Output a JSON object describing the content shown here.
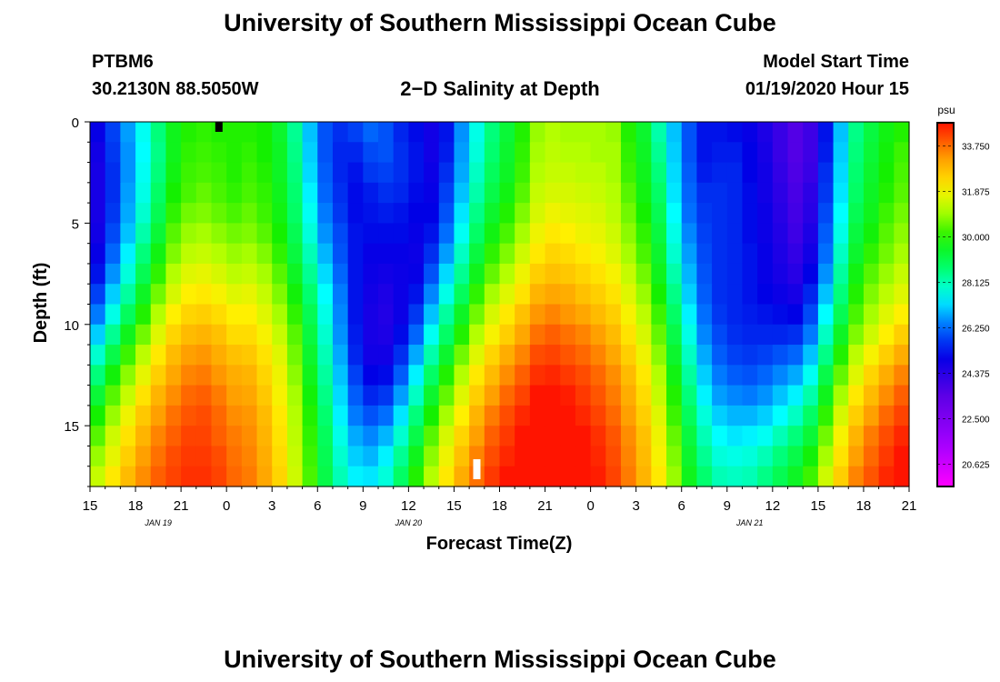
{
  "header": {
    "title": "University of Southern Mississippi Ocean Cube",
    "station": "PTBM6",
    "location": "30.2130N 88.5050W",
    "subtitle": "2−D Salinity at Depth",
    "model_start_label": "Model Start Time",
    "model_start_value": "01/19/2020 Hour 15"
  },
  "footer": {
    "title": "University of Southern Mississippi Ocean Cube"
  },
  "chart_data": {
    "type": "heatmap",
    "title": "2−D Salinity at Depth",
    "xlabel": "Forecast Time(Z)",
    "ylabel": "Depth (ft)",
    "x_hours_range": [
      0,
      54
    ],
    "ylim": [
      0,
      18
    ],
    "y_inverted": true,
    "x_tick_labels": [
      "15",
      "18",
      "21",
      "0",
      "3",
      "6",
      "9",
      "12",
      "15",
      "18",
      "21",
      "0",
      "3",
      "6",
      "9",
      "12",
      "15",
      "18",
      "21"
    ],
    "y_tick_labels": [
      "0",
      "5",
      "10",
      "15"
    ],
    "y_tick_values": [
      0,
      5,
      10,
      15
    ],
    "date_labels": [
      {
        "text": "JAN 19",
        "hour": 4.5
      },
      {
        "text": "JAN 20",
        "hour": 21
      },
      {
        "text": "JAN 21",
        "hour": 43.5
      }
    ],
    "colorbar": {
      "unit": "psu",
      "min": 19.7,
      "max": 34.7,
      "tick_labels": [
        "33.750",
        "31.875",
        "30.000",
        "28.125",
        "26.250",
        "24.375",
        "22.500",
        "20.625"
      ],
      "tick_values": [
        33.75,
        31.875,
        30.0,
        28.125,
        26.25,
        24.375,
        22.5,
        20.625
      ]
    },
    "grid_cols": 54,
    "grid_rows": 18,
    "salinity_rows_psu": [
      [
        25.0,
        25.8,
        26.7,
        27.6,
        28.6,
        29.6,
        30.0,
        30.1,
        30.0,
        30.0,
        30.0,
        29.9,
        29.4,
        28.4,
        27.0,
        26.0,
        25.6,
        25.8,
        26.2,
        26.0,
        25.5,
        25.2,
        24.8,
        25.3,
        26.6,
        27.7,
        28.6,
        29.3,
        30.0,
        30.9,
        31.1,
        31.0,
        31.0,
        31.0,
        30.9,
        30.0,
        29.4,
        28.2,
        27.0,
        26.0,
        25.3,
        25.3,
        25.2,
        25.0,
        24.6,
        24.1,
        23.6,
        24.0,
        25.3,
        27.0,
        28.5,
        29.2,
        29.7,
        30.0
      ],
      [
        24.8,
        25.7,
        26.6,
        27.5,
        28.5,
        29.6,
        30.1,
        30.2,
        30.1,
        30.0,
        30.1,
        29.9,
        29.5,
        28.5,
        27.1,
        26.0,
        25.5,
        25.5,
        25.9,
        26.0,
        25.6,
        25.3,
        24.8,
        25.4,
        26.7,
        27.8,
        28.7,
        29.4,
        30.1,
        31.0,
        31.2,
        31.1,
        31.1,
        31.0,
        31.0,
        30.1,
        29.5,
        28.4,
        27.1,
        26.0,
        25.3,
        25.4,
        25.4,
        25.1,
        24.7,
        24.1,
        23.6,
        24.0,
        25.4,
        27.1,
        28.6,
        29.3,
        29.8,
        30.2
      ],
      [
        24.7,
        25.6,
        26.6,
        27.6,
        28.6,
        29.7,
        30.2,
        30.3,
        30.2,
        30.0,
        30.2,
        30.0,
        29.5,
        28.6,
        27.2,
        26.1,
        25.5,
        25.3,
        25.7,
        25.8,
        25.6,
        25.3,
        24.9,
        25.6,
        26.8,
        28.0,
        28.9,
        29.5,
        30.2,
        31.1,
        31.3,
        31.3,
        31.2,
        31.2,
        31.0,
        30.2,
        29.6,
        28.6,
        27.2,
        26.1,
        25.4,
        25.5,
        25.5,
        25.1,
        24.8,
        24.2,
        23.7,
        24.1,
        25.6,
        27.2,
        28.7,
        29.4,
        29.9,
        30.3
      ],
      [
        24.7,
        25.6,
        26.7,
        27.7,
        28.8,
        29.9,
        30.3,
        30.5,
        30.3,
        30.1,
        30.3,
        30.1,
        29.6,
        28.7,
        27.4,
        26.2,
        25.6,
        25.2,
        25.4,
        25.6,
        25.5,
        25.2,
        25.0,
        25.8,
        27.0,
        28.2,
        29.1,
        29.7,
        30.4,
        31.3,
        31.5,
        31.5,
        31.4,
        31.3,
        31.1,
        30.4,
        29.7,
        28.8,
        27.3,
        26.2,
        25.6,
        25.6,
        25.5,
        25.2,
        24.8,
        24.3,
        23.8,
        24.3,
        25.7,
        27.3,
        28.8,
        29.5,
        30.0,
        30.4
      ],
      [
        24.7,
        25.7,
        26.8,
        27.9,
        29.0,
        30.1,
        30.6,
        30.7,
        30.5,
        30.3,
        30.5,
        30.2,
        29.7,
        28.8,
        27.6,
        26.4,
        25.7,
        25.2,
        25.3,
        25.4,
        25.3,
        25.1,
        25.1,
        26.0,
        27.3,
        28.5,
        29.4,
        30.0,
        30.7,
        31.5,
        31.8,
        31.7,
        31.6,
        31.5,
        31.2,
        30.6,
        29.9,
        29.0,
        27.5,
        26.3,
        25.7,
        25.6,
        25.5,
        25.2,
        24.9,
        24.4,
        23.9,
        24.4,
        25.9,
        27.5,
        29.0,
        29.6,
        30.2,
        30.6
      ],
      [
        24.8,
        25.9,
        27.0,
        28.2,
        29.3,
        30.4,
        30.9,
        31.0,
        30.8,
        30.6,
        30.7,
        30.4,
        29.9,
        29.0,
        27.8,
        26.6,
        25.9,
        25.3,
        25.2,
        25.2,
        25.2,
        25.0,
        25.3,
        26.3,
        27.6,
        28.8,
        29.7,
        30.3,
        31.0,
        31.8,
        32.1,
        32.0,
        31.8,
        31.7,
        31.4,
        30.8,
        30.1,
        29.2,
        27.7,
        26.5,
        25.8,
        25.6,
        25.5,
        25.2,
        24.9,
        24.5,
        24.0,
        24.6,
        26.1,
        27.7,
        29.2,
        29.8,
        30.4,
        30.8
      ],
      [
        25.0,
        26.2,
        27.4,
        28.6,
        29.7,
        30.7,
        31.2,
        31.3,
        31.1,
        30.9,
        31.0,
        30.7,
        30.1,
        29.2,
        28.1,
        26.9,
        26.0,
        25.3,
        25.0,
        25.0,
        25.0,
        24.9,
        25.6,
        26.7,
        28.0,
        29.2,
        30.1,
        30.7,
        31.4,
        32.1,
        32.4,
        32.3,
        32.1,
        31.9,
        31.6,
        31.0,
        30.3,
        29.4,
        27.9,
        26.7,
        25.9,
        25.6,
        25.5,
        25.3,
        25.0,
        24.6,
        24.2,
        24.8,
        26.3,
        28.0,
        29.4,
        30.1,
        30.6,
        31.0
      ],
      [
        25.3,
        26.6,
        27.8,
        29.0,
        30.1,
        31.1,
        31.6,
        31.7,
        31.5,
        31.2,
        31.3,
        31.0,
        30.4,
        29.5,
        28.4,
        27.2,
        26.2,
        25.3,
        24.9,
        24.8,
        24.9,
        25.0,
        26.0,
        27.2,
        28.4,
        29.6,
        30.5,
        31.1,
        31.8,
        32.5,
        32.7,
        32.6,
        32.4,
        32.2,
        31.9,
        31.3,
        30.6,
        29.6,
        28.2,
        26.9,
        26.0,
        25.6,
        25.5,
        25.3,
        25.0,
        24.7,
        24.4,
        25.1,
        26.6,
        28.3,
        29.7,
        30.4,
        30.9,
        31.3
      ],
      [
        25.8,
        27.1,
        28.3,
        29.5,
        30.6,
        31.5,
        32.0,
        32.1,
        31.9,
        31.6,
        31.7,
        31.3,
        30.7,
        29.8,
        28.7,
        27.5,
        26.4,
        25.3,
        24.8,
        24.6,
        24.9,
        25.3,
        26.5,
        27.7,
        28.9,
        30.1,
        31.0,
        31.6,
        32.2,
        32.9,
        33.1,
        33.0,
        32.7,
        32.5,
        32.2,
        31.6,
        30.9,
        29.9,
        28.5,
        27.1,
        26.1,
        25.6,
        25.5,
        25.3,
        25.1,
        24.9,
        24.7,
        25.5,
        27.0,
        28.6,
        30.0,
        30.7,
        31.2,
        31.6
      ],
      [
        26.4,
        27.7,
        28.9,
        30.0,
        31.1,
        32.0,
        32.4,
        32.5,
        32.3,
        32.0,
        32.0,
        31.6,
        31.0,
        30.1,
        29.0,
        27.7,
        26.5,
        25.3,
        24.7,
        24.5,
        24.9,
        25.7,
        27.0,
        28.3,
        29.5,
        30.6,
        31.5,
        32.1,
        32.7,
        33.3,
        33.5,
        33.3,
        33.1,
        32.8,
        32.5,
        31.9,
        31.2,
        30.2,
        28.8,
        27.4,
        26.3,
        25.7,
        25.5,
        25.4,
        25.3,
        25.2,
        25.1,
        25.9,
        27.5,
        29.0,
        30.3,
        31.0,
        31.6,
        32.0
      ],
      [
        27.1,
        28.4,
        29.6,
        30.6,
        31.6,
        32.4,
        32.8,
        32.9,
        32.7,
        32.3,
        32.3,
        31.9,
        31.3,
        30.4,
        29.2,
        27.9,
        26.6,
        25.4,
        24.7,
        24.6,
        25.2,
        26.2,
        27.6,
        28.8,
        30.0,
        31.1,
        31.9,
        32.5,
        33.1,
        33.7,
        33.9,
        33.7,
        33.5,
        33.2,
        32.8,
        32.2,
        31.5,
        30.5,
        29.1,
        27.7,
        26.5,
        25.9,
        25.6,
        25.5,
        25.5,
        25.5,
        25.6,
        26.4,
        28.0,
        29.5,
        30.7,
        31.4,
        32.0,
        32.5
      ],
      [
        27.9,
        29.1,
        30.2,
        31.2,
        32.1,
        32.8,
        33.2,
        33.3,
        33.0,
        32.7,
        32.6,
        32.2,
        31.6,
        30.6,
        29.4,
        28.1,
        26.8,
        25.5,
        24.8,
        24.8,
        25.6,
        26.8,
        28.2,
        29.4,
        30.6,
        31.6,
        32.4,
        33.0,
        33.5,
        34.1,
        34.2,
        34.0,
        33.8,
        33.5,
        33.1,
        32.5,
        31.8,
        30.8,
        29.4,
        28.0,
        26.8,
        26.1,
        25.8,
        25.7,
        25.8,
        26.0,
        26.2,
        27.0,
        28.5,
        30.0,
        31.2,
        31.9,
        32.5,
        33.0
      ],
      [
        28.6,
        29.8,
        30.8,
        31.7,
        32.5,
        33.1,
        33.5,
        33.6,
        33.3,
        33.0,
        32.9,
        32.4,
        31.8,
        30.8,
        29.6,
        28.3,
        27.0,
        25.8,
        25.1,
        25.2,
        26.1,
        27.4,
        28.8,
        30.0,
        31.1,
        32.1,
        32.8,
        33.4,
        33.9,
        34.4,
        34.5,
        34.3,
        34.1,
        33.8,
        33.4,
        32.8,
        32.1,
        31.1,
        29.7,
        28.3,
        27.1,
        26.4,
        26.1,
        26.0,
        26.2,
        26.5,
        26.8,
        27.6,
        29.1,
        30.5,
        31.6,
        32.4,
        33.0,
        33.5
      ],
      [
        29.3,
        30.4,
        31.3,
        32.2,
        32.9,
        33.4,
        33.8,
        33.9,
        33.6,
        33.2,
        33.1,
        32.6,
        31.9,
        31.0,
        29.8,
        28.5,
        27.2,
        26.1,
        25.5,
        25.7,
        26.7,
        28.0,
        29.4,
        30.5,
        31.6,
        32.5,
        33.2,
        33.8,
        34.2,
        34.7,
        34.8,
        34.6,
        34.3,
        34.0,
        33.6,
        33.0,
        32.3,
        31.3,
        30.0,
        28.6,
        27.4,
        26.7,
        26.5,
        26.4,
        26.6,
        27.0,
        27.4,
        28.2,
        29.6,
        31.0,
        32.1,
        32.8,
        33.4,
        33.9
      ],
      [
        29.9,
        30.9,
        31.8,
        32.6,
        33.2,
        33.7,
        34.0,
        34.1,
        33.8,
        33.4,
        33.3,
        32.8,
        32.1,
        31.1,
        30.0,
        28.7,
        27.4,
        26.4,
        26.0,
        26.3,
        27.3,
        28.6,
        29.9,
        31.0,
        32.0,
        32.9,
        33.6,
        34.1,
        34.5,
        34.9,
        35.0,
        34.8,
        34.5,
        34.2,
        33.8,
        33.2,
        32.5,
        31.6,
        30.2,
        28.9,
        27.8,
        27.1,
        26.9,
        26.9,
        27.1,
        27.5,
        28.0,
        28.8,
        30.1,
        31.5,
        32.5,
        33.2,
        33.8,
        34.2
      ],
      [
        30.4,
        31.4,
        32.2,
        32.9,
        33.5,
        33.9,
        34.2,
        34.2,
        33.9,
        33.6,
        33.4,
        32.9,
        32.2,
        31.2,
        30.1,
        28.9,
        27.7,
        26.8,
        26.5,
        26.9,
        27.9,
        29.1,
        30.4,
        31.5,
        32.4,
        33.2,
        33.9,
        34.3,
        34.7,
        35.1,
        35.1,
        34.9,
        34.7,
        34.4,
        34.0,
        33.4,
        32.7,
        31.8,
        30.5,
        29.2,
        28.1,
        27.5,
        27.3,
        27.4,
        27.6,
        28.1,
        28.6,
        29.3,
        30.6,
        31.9,
        32.9,
        33.6,
        34.1,
        34.5
      ],
      [
        30.9,
        31.7,
        32.5,
        33.2,
        33.7,
        34.1,
        34.3,
        34.3,
        34.1,
        33.7,
        33.5,
        33.0,
        32.3,
        31.3,
        30.2,
        29.0,
        27.9,
        27.1,
        26.9,
        27.4,
        28.4,
        29.6,
        30.8,
        31.8,
        32.7,
        33.5,
        34.1,
        34.5,
        34.8,
        35.2,
        35.2,
        35.0,
        34.8,
        34.5,
        34.1,
        33.5,
        32.8,
        31.9,
        30.7,
        29.4,
        28.4,
        27.8,
        27.7,
        27.8,
        28.1,
        28.6,
        29.1,
        29.8,
        31.0,
        32.2,
        33.2,
        33.8,
        34.3,
        34.7
      ],
      [
        31.3,
        32.1,
        32.8,
        33.4,
        33.9,
        34.2,
        34.4,
        34.4,
        34.2,
        33.8,
        33.6,
        33.1,
        32.4,
        31.4,
        30.3,
        29.1,
        28.1,
        27.4,
        27.3,
        27.8,
        28.8,
        30.0,
        31.1,
        32.1,
        33.0,
        33.7,
        34.3,
        34.7,
        35.0,
        35.3,
        35.3,
        35.1,
        34.9,
        34.6,
        34.2,
        33.6,
        32.9,
        32.1,
        30.9,
        29.6,
        28.7,
        28.1,
        28.0,
        28.1,
        28.5,
        29.0,
        29.5,
        30.2,
        31.4,
        32.5,
        33.5,
        34.0,
        34.5,
        34.8
      ]
    ],
    "markers": [
      {
        "hour": 8.5,
        "depth": 0.3,
        "color": "#000000"
      },
      {
        "hour": 25.5,
        "depth": 17.1,
        "color": "#ffffff"
      }
    ]
  }
}
